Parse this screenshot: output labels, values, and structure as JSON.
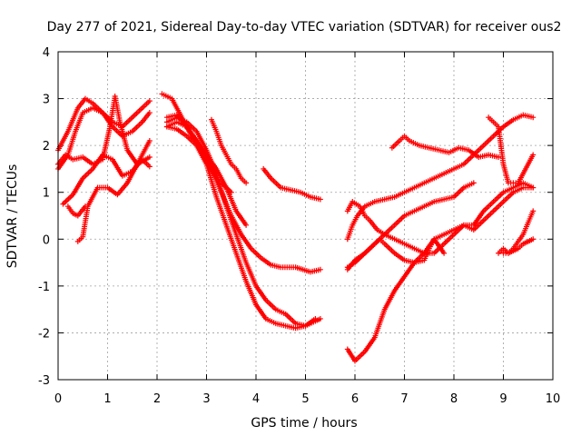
{
  "chart_data": {
    "type": "scatter",
    "title": "Day 277 of 2021, Sidereal Day-to-day VTEC variation (SDTVAR) for receiver ous2",
    "xlabel": "GPS time / hours",
    "ylabel": "SDTVAR / TECUs",
    "xlim": [
      0,
      10
    ],
    "ylim": [
      -3,
      4
    ],
    "xticks": [
      "0",
      "1",
      "2",
      "3",
      "4",
      "5",
      "6",
      "7",
      "8",
      "9",
      "10"
    ],
    "yticks": [
      "-3",
      "-2",
      "-1",
      "0",
      "1",
      "2",
      "3",
      "4"
    ],
    "grid": true,
    "marker": "plus",
    "color": "#ff0000",
    "series": [
      {
        "x": [
          0.0,
          0.2,
          0.4,
          0.55,
          0.7,
          0.9,
          1.1,
          1.3,
          1.5,
          1.7,
          1.85
        ],
        "y": [
          1.9,
          2.3,
          2.8,
          3.0,
          2.9,
          2.7,
          2.5,
          2.4,
          2.6,
          2.8,
          2.95
        ]
      },
      {
        "x": [
          0.0,
          0.2,
          0.35,
          0.5,
          0.7,
          0.9,
          1.1,
          1.3,
          1.5,
          1.7,
          1.85
        ],
        "y": [
          1.5,
          1.8,
          2.3,
          2.7,
          2.8,
          2.7,
          2.4,
          2.2,
          2.3,
          2.5,
          2.7
        ]
      },
      {
        "x": [
          0.0,
          0.15,
          0.3,
          0.5,
          0.7,
          0.9,
          1.05,
          1.15,
          1.25,
          1.4,
          1.6,
          1.85
        ],
        "y": [
          1.6,
          1.8,
          1.7,
          1.75,
          1.6,
          1.7,
          2.4,
          3.05,
          2.5,
          1.9,
          1.6,
          1.75
        ]
      },
      {
        "x": [
          0.1,
          0.3,
          0.5,
          0.7,
          0.9,
          1.1,
          1.3,
          1.5,
          1.7,
          1.85
        ],
        "y": [
          0.75,
          0.95,
          1.3,
          1.5,
          1.8,
          1.7,
          1.35,
          1.45,
          1.7,
          1.55
        ]
      },
      {
        "x": [
          0.4,
          0.5,
          0.6,
          0.8,
          1.0,
          1.2,
          1.4,
          1.6,
          1.85
        ],
        "y": [
          -0.05,
          0.05,
          0.7,
          1.1,
          1.1,
          0.95,
          1.2,
          1.6,
          2.1
        ]
      },
      {
        "x": [
          0.2,
          0.3,
          0.4,
          0.55
        ],
        "y": [
          0.7,
          0.55,
          0.5,
          0.7
        ]
      },
      {
        "x": [
          2.2,
          2.4,
          2.6,
          2.8,
          3.0,
          3.2,
          3.4,
          3.6,
          3.8
        ],
        "y": [
          2.4,
          2.5,
          2.4,
          2.1,
          1.8,
          1.5,
          1.1,
          0.6,
          0.3
        ]
      },
      {
        "x": [
          2.1,
          2.3,
          2.5,
          2.7,
          2.9,
          3.1,
          3.3,
          3.5,
          3.7,
          3.9,
          4.1,
          4.3,
          4.5,
          4.8,
          5.1,
          5.3
        ],
        "y": [
          3.1,
          3.0,
          2.6,
          2.2,
          1.9,
          1.5,
          1.0,
          0.5,
          0.1,
          -0.2,
          -0.4,
          -0.55,
          -0.6,
          -0.6,
          -0.7,
          -0.65
        ]
      },
      {
        "x": [
          2.2,
          2.4,
          2.6,
          2.8,
          3.0,
          3.2,
          3.4,
          3.6,
          3.8,
          4.0,
          4.2,
          4.4,
          4.6,
          4.8,
          5.0,
          5.2,
          5.3
        ],
        "y": [
          2.5,
          2.6,
          2.5,
          2.3,
          1.9,
          1.4,
          0.7,
          0.1,
          -0.5,
          -1.0,
          -1.3,
          -1.5,
          -1.6,
          -1.8,
          -1.85,
          -1.75,
          -1.7
        ]
      },
      {
        "x": [
          2.2,
          2.4,
          2.6,
          2.8,
          3.0,
          3.2,
          3.4,
          3.6,
          3.8,
          4.0,
          4.2,
          4.4,
          4.6,
          4.8,
          5.0,
          5.2
        ],
        "y": [
          2.4,
          2.35,
          2.2,
          2.0,
          1.6,
          0.9,
          0.3,
          -0.3,
          -0.9,
          -1.4,
          -1.7,
          -1.8,
          -1.85,
          -1.9,
          -1.85,
          -1.7
        ]
      },
      {
        "x": [
          2.2,
          2.4,
          2.6,
          2.8,
          3.0,
          3.2,
          3.3,
          3.5
        ],
        "y": [
          2.6,
          2.65,
          2.4,
          2.1,
          1.7,
          1.3,
          1.2,
          1.0
        ]
      },
      {
        "x": [
          3.1,
          3.2,
          3.3,
          3.4,
          3.5,
          3.6,
          3.7,
          3.8
        ],
        "y": [
          2.55,
          2.3,
          2.0,
          1.8,
          1.6,
          1.5,
          1.3,
          1.2
        ]
      },
      {
        "x": [
          4.15,
          4.3,
          4.5,
          4.7,
          4.9,
          5.1,
          5.3
        ],
        "y": [
          1.5,
          1.3,
          1.1,
          1.05,
          1.0,
          0.9,
          0.85
        ]
      },
      {
        "x": [
          5.85,
          5.95,
          6.05,
          6.2,
          6.4,
          6.6,
          6.8,
          7.0,
          7.2,
          7.4,
          7.6,
          7.8,
          8.0,
          8.2,
          8.4,
          8.6,
          8.8,
          9.0,
          9.2,
          9.4,
          9.6
        ],
        "y": [
          0.0,
          0.3,
          0.5,
          0.7,
          0.8,
          0.85,
          0.9,
          1.0,
          1.1,
          1.2,
          1.3,
          1.4,
          1.5,
          1.6,
          1.8,
          2.0,
          2.2,
          2.4,
          2.55,
          2.65,
          2.6
        ]
      },
      {
        "x": [
          5.85,
          5.95,
          6.1,
          6.2,
          6.3,
          6.45,
          6.6,
          6.8,
          7.0,
          7.2,
          7.4,
          7.6,
          7.8,
          8.0,
          8.2,
          8.4,
          8.6,
          8.8,
          9.0,
          9.2,
          9.4,
          9.6
        ],
        "y": [
          0.6,
          0.8,
          0.7,
          0.5,
          0.4,
          0.2,
          0.1,
          0.0,
          -0.1,
          -0.2,
          -0.3,
          -0.3,
          -0.1,
          0.1,
          0.3,
          0.2,
          0.4,
          0.6,
          0.8,
          1.0,
          1.1,
          1.1
        ]
      },
      {
        "x": [
          5.85,
          6.0,
          6.2,
          6.4,
          6.6,
          6.8,
          7.0,
          7.2,
          7.4,
          7.6,
          7.8,
          8.0,
          8.2,
          8.4
        ],
        "y": [
          -0.6,
          -0.5,
          -0.3,
          -0.1,
          0.1,
          0.3,
          0.5,
          0.6,
          0.7,
          0.8,
          0.85,
          0.9,
          1.1,
          1.2
        ]
      },
      {
        "x": [
          5.85,
          6.0,
          6.2,
          6.4,
          6.5,
          6.6,
          6.8,
          7.0,
          7.2,
          7.4,
          7.5,
          7.6,
          7.8
        ],
        "y": [
          -0.65,
          -0.45,
          -0.3,
          -0.1,
          0.0,
          -0.1,
          -0.3,
          -0.45,
          -0.5,
          -0.45,
          -0.2,
          0.0,
          -0.3
        ]
      },
      {
        "x": [
          5.85,
          6.0,
          6.2,
          6.4,
          6.6,
          6.8,
          7.0,
          7.2,
          7.4,
          7.6,
          7.8,
          8.0,
          8.2,
          8.4,
          8.6,
          8.8,
          9.0,
          9.2,
          9.4,
          9.6
        ],
        "y": [
          -2.35,
          -2.6,
          -2.4,
          -2.1,
          -1.5,
          -1.1,
          -0.8,
          -0.5,
          -0.3,
          0.0,
          0.1,
          0.2,
          0.3,
          0.3,
          0.6,
          0.8,
          1.0,
          1.1,
          1.2,
          1.1
        ]
      },
      {
        "x": [
          6.75,
          6.9,
          7.0,
          7.1,
          7.3,
          7.5,
          7.7,
          7.9,
          8.1,
          8.3,
          8.5,
          8.7,
          8.9
        ],
        "y": [
          1.95,
          2.1,
          2.2,
          2.1,
          2.0,
          1.95,
          1.9,
          1.85,
          1.95,
          1.9,
          1.75,
          1.8,
          1.75
        ]
      },
      {
        "x": [
          8.7,
          8.8,
          8.9,
          9.0,
          9.1,
          9.2,
          9.3,
          9.45,
          9.6
        ],
        "y": [
          2.6,
          2.5,
          2.4,
          1.6,
          1.2,
          1.2,
          1.2,
          1.5,
          1.8
        ]
      },
      {
        "x": [
          8.9,
          9.0,
          9.1,
          9.2,
          9.3,
          9.4,
          9.5,
          9.6
        ],
        "y": [
          -0.3,
          -0.2,
          -0.3,
          -0.25,
          -0.2,
          -0.1,
          -0.05,
          0.0
        ]
      },
      {
        "x": [
          9.0,
          9.1,
          9.2,
          9.3,
          9.4,
          9.5,
          9.6
        ],
        "y": [
          -0.3,
          -0.3,
          -0.2,
          -0.05,
          0.1,
          0.35,
          0.6
        ]
      }
    ]
  }
}
